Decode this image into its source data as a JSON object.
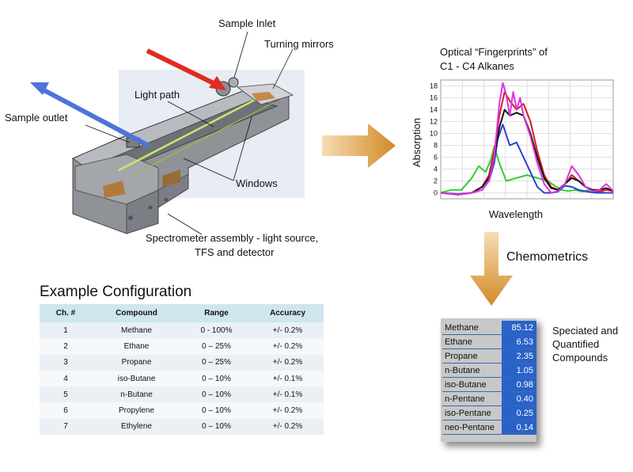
{
  "diagram": {
    "labels": {
      "sample_inlet": "Sample Inlet",
      "turning_mirrors": "Turning mirrors",
      "light_path": "Light path",
      "sample_outlet": "Sample outlet",
      "windows": "Windows",
      "spectrometer_line1": "Spectrometer assembly - light source,",
      "spectrometer_line2": "TFS and detector",
      "chemometrics": "Chemometrics"
    },
    "colors": {
      "inlet_arrow": "#e02b20",
      "outlet_arrow": "#4f73d8",
      "flow_arrow": "#d9902c"
    }
  },
  "chart_data": {
    "type": "line",
    "title_line1": "Optical “Fingerprints” of",
    "title_line2": "C1 - C4 Alkanes",
    "xlabel": "Wavelength",
    "ylabel": "Absorption",
    "yticks": [
      0,
      2,
      4,
      6,
      8,
      10,
      12,
      14,
      16,
      18
    ],
    "ylim": [
      -1,
      19
    ],
    "xlim": [
      0,
      100
    ],
    "grid": true,
    "series": [
      {
        "color": "#33cc33",
        "x": [
          0,
          6,
          12,
          18,
          22,
          26,
          29,
          31,
          34,
          38,
          44,
          50,
          56,
          62,
          66,
          70,
          74,
          78,
          82,
          86,
          90,
          95,
          100
        ],
        "y": [
          0,
          0.5,
          0.5,
          2.5,
          4.5,
          3.5,
          5.5,
          7.8,
          5,
          2,
          2.5,
          3,
          2.5,
          2,
          1.2,
          0.5,
          0.3,
          0.5,
          0.2,
          0.5,
          0.2,
          0,
          0
        ]
      },
      {
        "color": "#2a3fd8",
        "x": [
          0,
          10,
          18,
          24,
          28,
          31,
          33,
          36,
          40,
          44,
          48,
          52,
          56,
          60,
          64,
          68,
          72,
          76,
          80,
          85,
          90,
          95,
          100
        ],
        "y": [
          0,
          -0.2,
          0,
          0.5,
          2,
          5,
          9,
          11.5,
          8,
          8.5,
          6,
          3.5,
          1,
          0,
          0,
          0.2,
          1.2,
          1,
          0.5,
          0.2,
          0,
          0,
          0
        ]
      },
      {
        "color": "#cc2222",
        "x": [
          0,
          10,
          18,
          24,
          28,
          31,
          34,
          37,
          40,
          44,
          48,
          52,
          56,
          60,
          64,
          68,
          72,
          76,
          80,
          84,
          88,
          92,
          96,
          100
        ],
        "y": [
          0,
          -0.3,
          0,
          1,
          3,
          7,
          13,
          17,
          15.5,
          14,
          15,
          12,
          7,
          3,
          1,
          0.5,
          1.5,
          3,
          2,
          1,
          0.5,
          0.2,
          0.5,
          0.3
        ]
      },
      {
        "color": "#111111",
        "x": [
          0,
          10,
          18,
          24,
          28,
          31,
          34,
          37,
          40,
          44,
          48,
          52,
          56,
          60,
          64,
          68,
          72,
          76,
          80,
          84,
          88,
          92,
          96,
          100
        ],
        "y": [
          0,
          -0.3,
          0,
          1,
          2.5,
          6,
          11,
          14,
          13,
          13.5,
          13,
          10,
          6,
          2.5,
          0.8,
          0.5,
          1.5,
          2.5,
          2,
          1,
          0.5,
          0.5,
          0.8,
          0.3
        ]
      },
      {
        "color": "#dd33dd",
        "x": [
          0,
          10,
          18,
          24,
          28,
          31,
          34,
          36,
          38,
          40,
          42,
          44,
          46,
          48,
          52,
          56,
          60,
          64,
          68,
          72,
          76,
          80,
          84,
          88,
          92,
          96,
          100
        ],
        "y": [
          0,
          -0.3,
          0,
          0.5,
          2,
          6,
          15,
          18.5,
          16.5,
          13,
          17,
          14,
          16,
          13,
          9.5,
          5,
          1.5,
          0,
          0.3,
          1.5,
          4.5,
          3,
          1,
          0.3,
          0.5,
          1.5,
          0.3
        ]
      }
    ]
  },
  "config": {
    "title": "Example Configuration",
    "headers": [
      "Ch. #",
      "Compound",
      "Range",
      "Accuracy"
    ],
    "rows": [
      [
        "1",
        "Methane",
        "0 - 100%",
        "+/- 0.2%"
      ],
      [
        "2",
        "Ethane",
        "0 – 25%",
        "+/- 0.2%"
      ],
      [
        "3",
        "Propane",
        "0 – 25%",
        "+/- 0.2%"
      ],
      [
        "4",
        "iso-Butane",
        "0 – 10%",
        "+/- 0.1%"
      ],
      [
        "5",
        "n-Butane",
        "0 – 10%",
        "+/- 0.1%"
      ],
      [
        "6",
        "Propylene",
        "0 – 10%",
        "+/- 0.2%"
      ],
      [
        "7",
        "Ethylene",
        "0 – 10%",
        "+/- 0.2%"
      ]
    ]
  },
  "results": {
    "caption_line1": "Speciated and",
    "caption_line2": "Quantified",
    "caption_line3": "Compounds",
    "rows": [
      [
        "Methane",
        "85.12"
      ],
      [
        "Ethane",
        "6.53"
      ],
      [
        "Propane",
        "2.35"
      ],
      [
        "n-Butane",
        "1.05"
      ],
      [
        "iso-Butane",
        "0.98"
      ],
      [
        "n-Pentane",
        "0.40"
      ],
      [
        "iso-Pentane",
        "0.25"
      ],
      [
        "neo-Pentane",
        "0.14"
      ]
    ]
  }
}
